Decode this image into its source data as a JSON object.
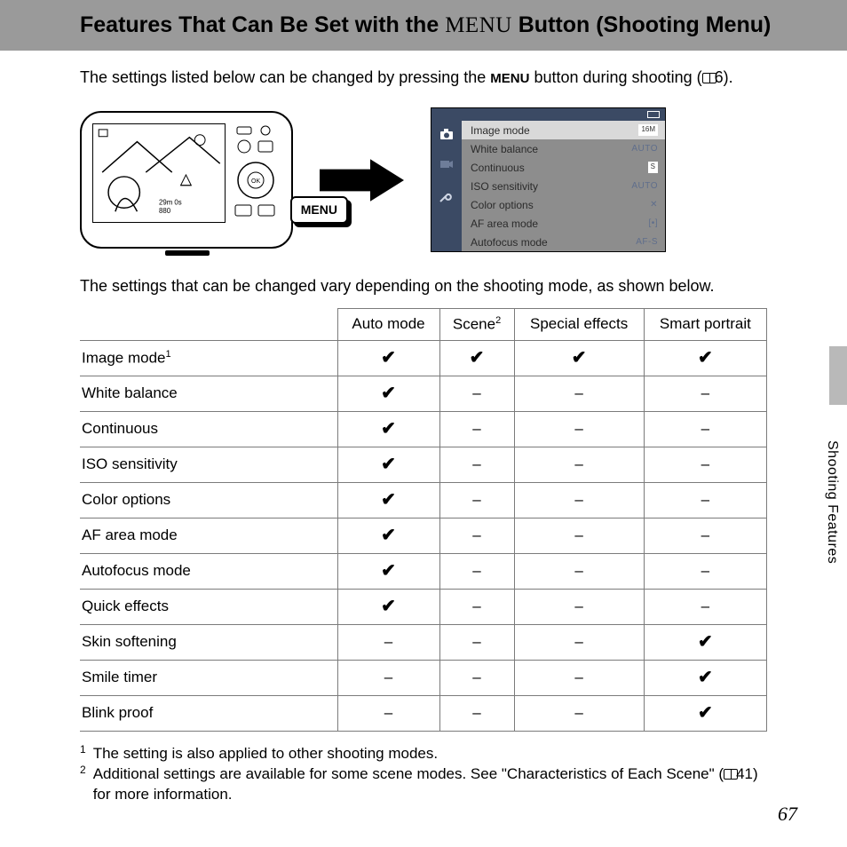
{
  "title": {
    "pre": "Features That Can Be Set with the ",
    "menu_word": "MENU",
    "post": " Button (Shooting Menu)"
  },
  "intro": {
    "text_a": "The settings listed below can be changed by pressing the ",
    "menu_bold": "MENU",
    "text_b": " button during shooting (",
    "ref": "6",
    "text_c": ")."
  },
  "camera": {
    "menu_btn": "MENU"
  },
  "menu_panel": {
    "items": [
      {
        "label": "Image mode",
        "val": "16M",
        "selected": true,
        "val_box": true
      },
      {
        "label": "White balance",
        "val": "AUTO"
      },
      {
        "label": "Continuous",
        "val": "S",
        "val_box": true
      },
      {
        "label": "ISO sensitivity",
        "val": "AUTO"
      },
      {
        "label": "Color options",
        "val": "✕"
      },
      {
        "label": "AF area mode",
        "val": "[•]"
      },
      {
        "label": "Autofocus mode",
        "val": "AF-S"
      }
    ],
    "side_icons": [
      "camera-icon",
      "video-icon",
      "wrench-icon"
    ]
  },
  "second_intro": "The settings that can be changed vary depending on the shooting mode, as shown below.",
  "table": {
    "columns": [
      "Auto mode",
      "Scene",
      "Special effects",
      "Smart portrait"
    ],
    "col_sup": [
      "",
      "2",
      "",
      ""
    ],
    "rows": [
      {
        "label": "Image mode",
        "sup": "1",
        "cells": [
          "y",
          "y",
          "y",
          "y"
        ]
      },
      {
        "label": "White balance",
        "cells": [
          "y",
          "-",
          "-",
          "-"
        ]
      },
      {
        "label": "Continuous",
        "cells": [
          "y",
          "-",
          "-",
          "-"
        ]
      },
      {
        "label": "ISO sensitivity",
        "cells": [
          "y",
          "-",
          "-",
          "-"
        ]
      },
      {
        "label": "Color options",
        "cells": [
          "y",
          "-",
          "-",
          "-"
        ]
      },
      {
        "label": "AF area mode",
        "cells": [
          "y",
          "-",
          "-",
          "-"
        ]
      },
      {
        "label": "Autofocus mode",
        "cells": [
          "y",
          "-",
          "-",
          "-"
        ]
      },
      {
        "label": "Quick effects",
        "cells": [
          "y",
          "-",
          "-",
          "-"
        ]
      },
      {
        "label": "Skin softening",
        "cells": [
          "-",
          "-",
          "-",
          "y"
        ]
      },
      {
        "label": "Smile timer",
        "cells": [
          "-",
          "-",
          "-",
          "y"
        ]
      },
      {
        "label": "Blink proof",
        "cells": [
          "-",
          "-",
          "-",
          "y"
        ]
      }
    ],
    "check_glyph": "✔",
    "dash_glyph": "–"
  },
  "footnotes": {
    "f1": "The setting is also applied to other shooting modes.",
    "f2_a": "Additional settings are available for some scene modes. See \"Characteristics of Each Scene\" (",
    "f2_ref": "41",
    "f2_b": ") for more information."
  },
  "side_label": "Shooting Features",
  "page_number": "67"
}
